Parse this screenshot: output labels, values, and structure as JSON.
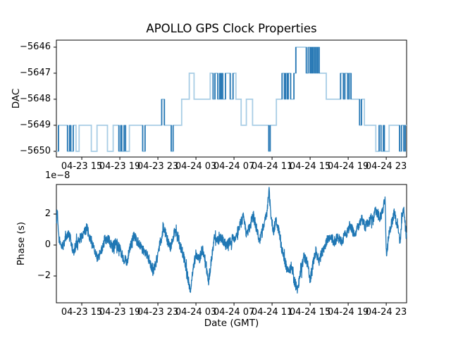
{
  "figure": {
    "title": "APOLLO GPS Clock Properties",
    "background_color": "#ffffff",
    "line_color": "#1f77b4",
    "step_line_light_color": "#a8cde5",
    "step_line_dark_color": "#2979b5"
  },
  "chart_data": [
    {
      "type": "line",
      "subplot": "top",
      "title": "APOLLO GPS Clock Properties",
      "ylabel": "DAC",
      "draw_style": "steps",
      "grid": false,
      "legend": "none",
      "x_axis_note": "time in GMT, hours counted from 04-23 00:00",
      "xlim_hours": [
        12.33,
        49.14
      ],
      "x_tick_hours": [
        15,
        19,
        23,
        27,
        31,
        35,
        39,
        43,
        47
      ],
      "x_tick_labels": [
        "04-23 15",
        "04-23 19",
        "04-23 23",
        "04-24 03",
        "04-24 07",
        "04-24 11",
        "04-24 15",
        "04-24 19",
        "04-24 23"
      ],
      "ylim": [
        -5650.22,
        -5645.73
      ],
      "y_tick_values": [
        -5646,
        -5647,
        -5648,
        -5649,
        -5650
      ],
      "y_tick_labels": [
        "−5646",
        "−5647",
        "−5648",
        "−5649",
        "−5650"
      ],
      "step_points_hours_dac": [
        [
          12.33,
          -5650
        ],
        [
          12.55,
          -5649
        ],
        [
          13.5,
          -5650
        ],
        [
          13.72,
          -5649
        ],
        [
          13.85,
          -5650
        ],
        [
          14.1,
          -5649
        ],
        [
          14.4,
          -5650
        ],
        [
          14.72,
          -5649
        ],
        [
          16.0,
          -5650
        ],
        [
          16.6,
          -5649
        ],
        [
          17.7,
          -5650
        ],
        [
          18.3,
          -5649
        ],
        [
          18.9,
          -5650
        ],
        [
          19.1,
          -5649
        ],
        [
          19.2,
          -5650
        ],
        [
          19.45,
          -5649
        ],
        [
          19.6,
          -5650
        ],
        [
          20.0,
          -5649
        ],
        [
          21.4,
          -5650
        ],
        [
          21.65,
          -5649
        ],
        [
          23.4,
          -5648
        ],
        [
          23.68,
          -5649
        ],
        [
          24.4,
          -5650
        ],
        [
          24.6,
          -5649
        ],
        [
          25.5,
          -5648
        ],
        [
          26.3,
          -5647
        ],
        [
          26.8,
          -5648
        ],
        [
          28.5,
          -5647
        ],
        [
          28.8,
          -5648
        ],
        [
          29.0,
          -5647
        ],
        [
          29.3,
          -5648
        ],
        [
          29.5,
          -5647
        ],
        [
          29.62,
          -5648
        ],
        [
          29.68,
          -5647
        ],
        [
          29.82,
          -5648
        ],
        [
          30.1,
          -5647
        ],
        [
          30.6,
          -5648
        ],
        [
          30.9,
          -5647
        ],
        [
          31.2,
          -5648
        ],
        [
          31.75,
          -5649
        ],
        [
          32.3,
          -5648
        ],
        [
          32.95,
          -5649
        ],
        [
          34.65,
          -5650
        ],
        [
          34.8,
          -5649
        ],
        [
          35.45,
          -5648
        ],
        [
          36.05,
          -5647
        ],
        [
          36.3,
          -5648
        ],
        [
          36.42,
          -5647
        ],
        [
          36.6,
          -5648
        ],
        [
          36.7,
          -5647
        ],
        [
          36.95,
          -5648
        ],
        [
          37.3,
          -5647
        ],
        [
          37.5,
          -5646
        ],
        [
          38.6,
          -5647
        ],
        [
          38.8,
          -5646
        ],
        [
          39.0,
          -5647
        ],
        [
          39.1,
          -5646
        ],
        [
          39.22,
          -5647
        ],
        [
          39.3,
          -5646
        ],
        [
          39.45,
          -5647
        ],
        [
          39.55,
          -5646
        ],
        [
          39.7,
          -5647
        ],
        [
          39.8,
          -5646
        ],
        [
          39.95,
          -5647
        ],
        [
          40.7,
          -5648
        ],
        [
          42.2,
          -5647
        ],
        [
          42.5,
          -5648
        ],
        [
          42.65,
          -5647
        ],
        [
          42.95,
          -5648
        ],
        [
          43.1,
          -5647
        ],
        [
          43.3,
          -5648
        ],
        [
          44.2,
          -5649
        ],
        [
          44.4,
          -5648
        ],
        [
          44.7,
          -5649
        ],
        [
          45.9,
          -5650
        ],
        [
          46.25,
          -5649
        ],
        [
          46.45,
          -5650
        ],
        [
          46.7,
          -5649
        ],
        [
          46.8,
          -5650
        ],
        [
          47.3,
          -5649
        ],
        [
          48.4,
          -5650
        ],
        [
          48.6,
          -5649
        ],
        [
          48.85,
          -5650
        ],
        [
          49.0,
          -5649
        ]
      ]
    },
    {
      "type": "line",
      "subplot": "bottom",
      "ylabel": "Phase (s)",
      "xlabel": "Date (GMT)",
      "offset_text": "1e−8",
      "units_multiplier": 1e-08,
      "grid": false,
      "legend": "none",
      "xlim_hours": [
        12.33,
        49.14
      ],
      "x_tick_hours": [
        15,
        19,
        23,
        27,
        31,
        35,
        39,
        43,
        47
      ],
      "x_tick_labels": [
        "04-23 15",
        "04-23 19",
        "04-23 23",
        "04-24 03",
        "04-24 07",
        "04-24 11",
        "04-24 15",
        "04-24 19",
        "04-24 23"
      ],
      "ylim_1e8": [
        -3.73,
        3.91
      ],
      "y_tick_values_1e8": [
        2,
        0,
        -2
      ],
      "y_tick_labels": [
        "2",
        "0",
        "−2"
      ],
      "trend_points_hours_1e8": [
        [
          12.35,
          1.6
        ],
        [
          12.42,
          2.5
        ],
        [
          12.55,
          0.6
        ],
        [
          12.75,
          0.1
        ],
        [
          12.95,
          -0.4
        ],
        [
          13.2,
          0.3
        ],
        [
          13.5,
          0.7
        ],
        [
          13.8,
          0.5
        ],
        [
          14.1,
          -0.5
        ],
        [
          14.4,
          0.0
        ],
        [
          14.8,
          0.3
        ],
        [
          15.2,
          0.8
        ],
        [
          15.55,
          1.1
        ],
        [
          15.9,
          0.3
        ],
        [
          16.3,
          -0.3
        ],
        [
          16.7,
          -0.9
        ],
        [
          17.0,
          -0.5
        ],
        [
          17.4,
          0.3
        ],
        [
          17.8,
          0.4
        ],
        [
          18.2,
          -0.2
        ],
        [
          18.6,
          0.2
        ],
        [
          19.0,
          -0.3
        ],
        [
          19.4,
          -0.9
        ],
        [
          19.75,
          -1.1
        ],
        [
          20.1,
          0.0
        ],
        [
          20.5,
          0.6
        ],
        [
          20.9,
          0.2
        ],
        [
          21.3,
          -0.2
        ],
        [
          21.7,
          -0.5
        ],
        [
          22.1,
          -1.0
        ],
        [
          22.5,
          -1.7
        ],
        [
          22.9,
          -0.9
        ],
        [
          23.3,
          0.3
        ],
        [
          23.65,
          1.1
        ],
        [
          24.0,
          0.3
        ],
        [
          24.35,
          -0.2
        ],
        [
          24.75,
          0.9
        ],
        [
          25.1,
          0.4
        ],
        [
          25.5,
          -0.3
        ],
        [
          25.85,
          -1.1
        ],
        [
          26.15,
          -2.1
        ],
        [
          26.4,
          -2.9
        ],
        [
          26.7,
          -1.5
        ],
        [
          27.0,
          -0.6
        ],
        [
          27.35,
          -0.9
        ],
        [
          27.7,
          -0.3
        ],
        [
          28.05,
          -1.2
        ],
        [
          28.3,
          -2.4
        ],
        [
          28.6,
          -1.1
        ],
        [
          28.95,
          0.6
        ],
        [
          29.3,
          0.3
        ],
        [
          29.7,
          0.5
        ],
        [
          30.1,
          0.0
        ],
        [
          30.5,
          0.2
        ],
        [
          30.9,
          0.4
        ],
        [
          31.3,
          0.7
        ],
        [
          31.7,
          1.4
        ],
        [
          32.0,
          1.8
        ],
        [
          32.3,
          0.7
        ],
        [
          32.65,
          1.1
        ],
        [
          33.0,
          2.0
        ],
        [
          33.35,
          1.1
        ],
        [
          33.7,
          0.3
        ],
        [
          34.1,
          1.1
        ],
        [
          34.45,
          2.0
        ],
        [
          34.68,
          3.6
        ],
        [
          34.9,
          1.8
        ],
        [
          35.15,
          0.9
        ],
        [
          35.4,
          1.6
        ],
        [
          35.7,
          0.9
        ],
        [
          36.0,
          -0.2
        ],
        [
          36.35,
          -1.1
        ],
        [
          36.7,
          -1.8
        ],
        [
          37.0,
          -1.4
        ],
        [
          37.3,
          -2.2
        ],
        [
          37.65,
          -2.9
        ],
        [
          38.0,
          -1.8
        ],
        [
          38.35,
          -0.7
        ],
        [
          38.7,
          -1.1
        ],
        [
          39.0,
          -2.3
        ],
        [
          39.3,
          -1.2
        ],
        [
          39.6,
          -0.4
        ],
        [
          39.95,
          -1.0
        ],
        [
          40.3,
          -0.4
        ],
        [
          40.7,
          0.2
        ],
        [
          41.1,
          0.6
        ],
        [
          41.5,
          0.2
        ],
        [
          41.9,
          0.5
        ],
        [
          42.3,
          0.2
        ],
        [
          42.75,
          0.7
        ],
        [
          43.2,
          1.3
        ],
        [
          43.6,
          0.7
        ],
        [
          44.0,
          1.1
        ],
        [
          44.4,
          1.7
        ],
        [
          44.8,
          1.2
        ],
        [
          45.2,
          1.5
        ],
        [
          45.6,
          1.9
        ],
        [
          45.95,
          2.3
        ],
        [
          46.3,
          1.7
        ],
        [
          46.6,
          2.1
        ],
        [
          46.88,
          3.1
        ],
        [
          47.02,
          -0.9
        ],
        [
          47.25,
          0.7
        ],
        [
          47.55,
          1.4
        ],
        [
          47.85,
          2.1
        ],
        [
          48.15,
          1.3
        ],
        [
          48.45,
          0.1
        ],
        [
          48.65,
          1.8
        ],
        [
          48.85,
          2.2
        ],
        [
          49.0,
          1.2
        ],
        [
          49.14,
          0.5
        ]
      ],
      "noise": {
        "amplitude_1e8": 0.33,
        "seed": 9,
        "step_hours": 0.02
      }
    }
  ]
}
